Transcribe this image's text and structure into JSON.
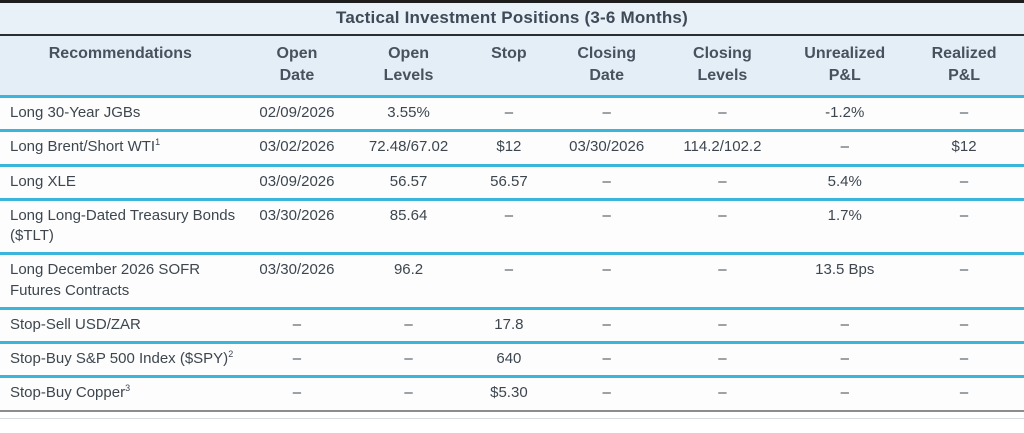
{
  "title": "Tactical Investment Positions (3-6 Months)",
  "colors": {
    "header_bg": "#e4eef7",
    "title_bg": "#e9f1f8",
    "separator_cyan": "#3ab5dc",
    "top_border": "#1d1d1d",
    "bottom_border": "#8d8d8d",
    "text": "#3d464f"
  },
  "columns": [
    "Recommendations",
    "Open\nDate",
    "Open\nLevels",
    "Stop",
    "Closing\nDate",
    "Closing\nLevels",
    "Unrealized\nP&L",
    "Realized\nP&L"
  ],
  "rows": [
    {
      "name": "Long 30-Year JGBs",
      "sup": "",
      "cells": [
        "02/09/2026",
        "3.55%",
        "–",
        "–",
        "–",
        "-1.2%",
        "–"
      ]
    },
    {
      "name": "Long Brent/Short WTI",
      "sup": "1",
      "cells": [
        "03/02/2026",
        "72.48/67.02",
        "$12",
        "03/30/2026",
        "114.2/102.2",
        "–",
        "$12"
      ]
    },
    {
      "name": "Long XLE",
      "sup": "",
      "cells": [
        "03/09/2026",
        "56.57",
        "56.57",
        "–",
        "–",
        "5.4%",
        "–"
      ]
    },
    {
      "name": "Long Long-Dated Treasury Bonds ($TLT)",
      "sup": "",
      "cells": [
        "03/30/2026",
        "85.64",
        "–",
        "–",
        "–",
        "1.7%",
        "–"
      ]
    },
    {
      "name": "Long December 2026 SOFR Futures Contracts",
      "sup": "",
      "cells": [
        "03/30/2026",
        "96.2",
        "–",
        "–",
        "–",
        "13.5 Bps",
        "–"
      ]
    },
    {
      "name": "Stop-Sell USD/ZAR",
      "sup": "",
      "cells": [
        "–",
        "–",
        "17.8",
        "–",
        "–",
        "–",
        "–"
      ]
    },
    {
      "name": "Stop-Buy S&P 500 Index ($SPY)",
      "sup": "2",
      "cells": [
        "–",
        "–",
        "640",
        "–",
        "–",
        "–",
        "–"
      ]
    },
    {
      "name": "Stop-Buy Copper",
      "sup": "3",
      "cells": [
        "–",
        "–",
        "$5.30",
        "–",
        "–",
        "–",
        "–"
      ]
    }
  ],
  "column_widths_pct": [
    23.5,
    11.0,
    10.8,
    8.8,
    10.3,
    12.3,
    11.6,
    11.7
  ]
}
